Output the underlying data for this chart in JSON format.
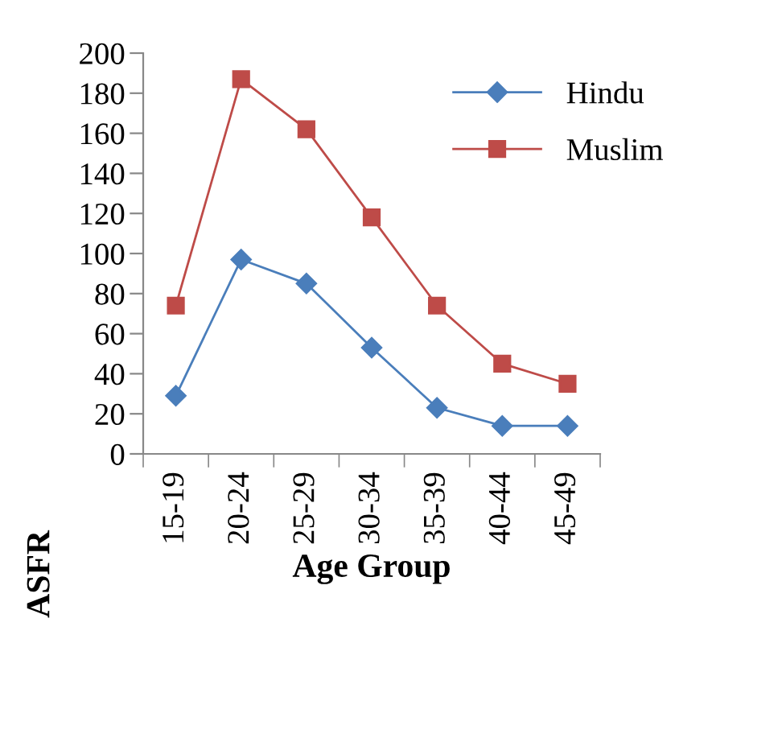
{
  "chart_data": {
    "type": "line",
    "xlabel": "Age Group",
    "ylabel": "ASFR",
    "categories": [
      "15-19",
      "20-24",
      "25-29",
      "30-34",
      "35-39",
      "40-44",
      "45-49"
    ],
    "series": [
      {
        "name": "Hindu",
        "color": "#4a7ebb",
        "marker": "diamond",
        "values": [
          29,
          97,
          85,
          53,
          23,
          14,
          14
        ]
      },
      {
        "name": "Muslim",
        "color": "#be4b48",
        "marker": "square",
        "values": [
          74,
          187,
          162,
          118,
          74,
          45,
          35
        ]
      }
    ],
    "ylim": [
      0,
      200
    ],
    "yticks": [
      0,
      20,
      40,
      60,
      80,
      100,
      120,
      140,
      160,
      180,
      200
    ],
    "grid": false,
    "legend": "top right",
    "line_style": "solid"
  }
}
